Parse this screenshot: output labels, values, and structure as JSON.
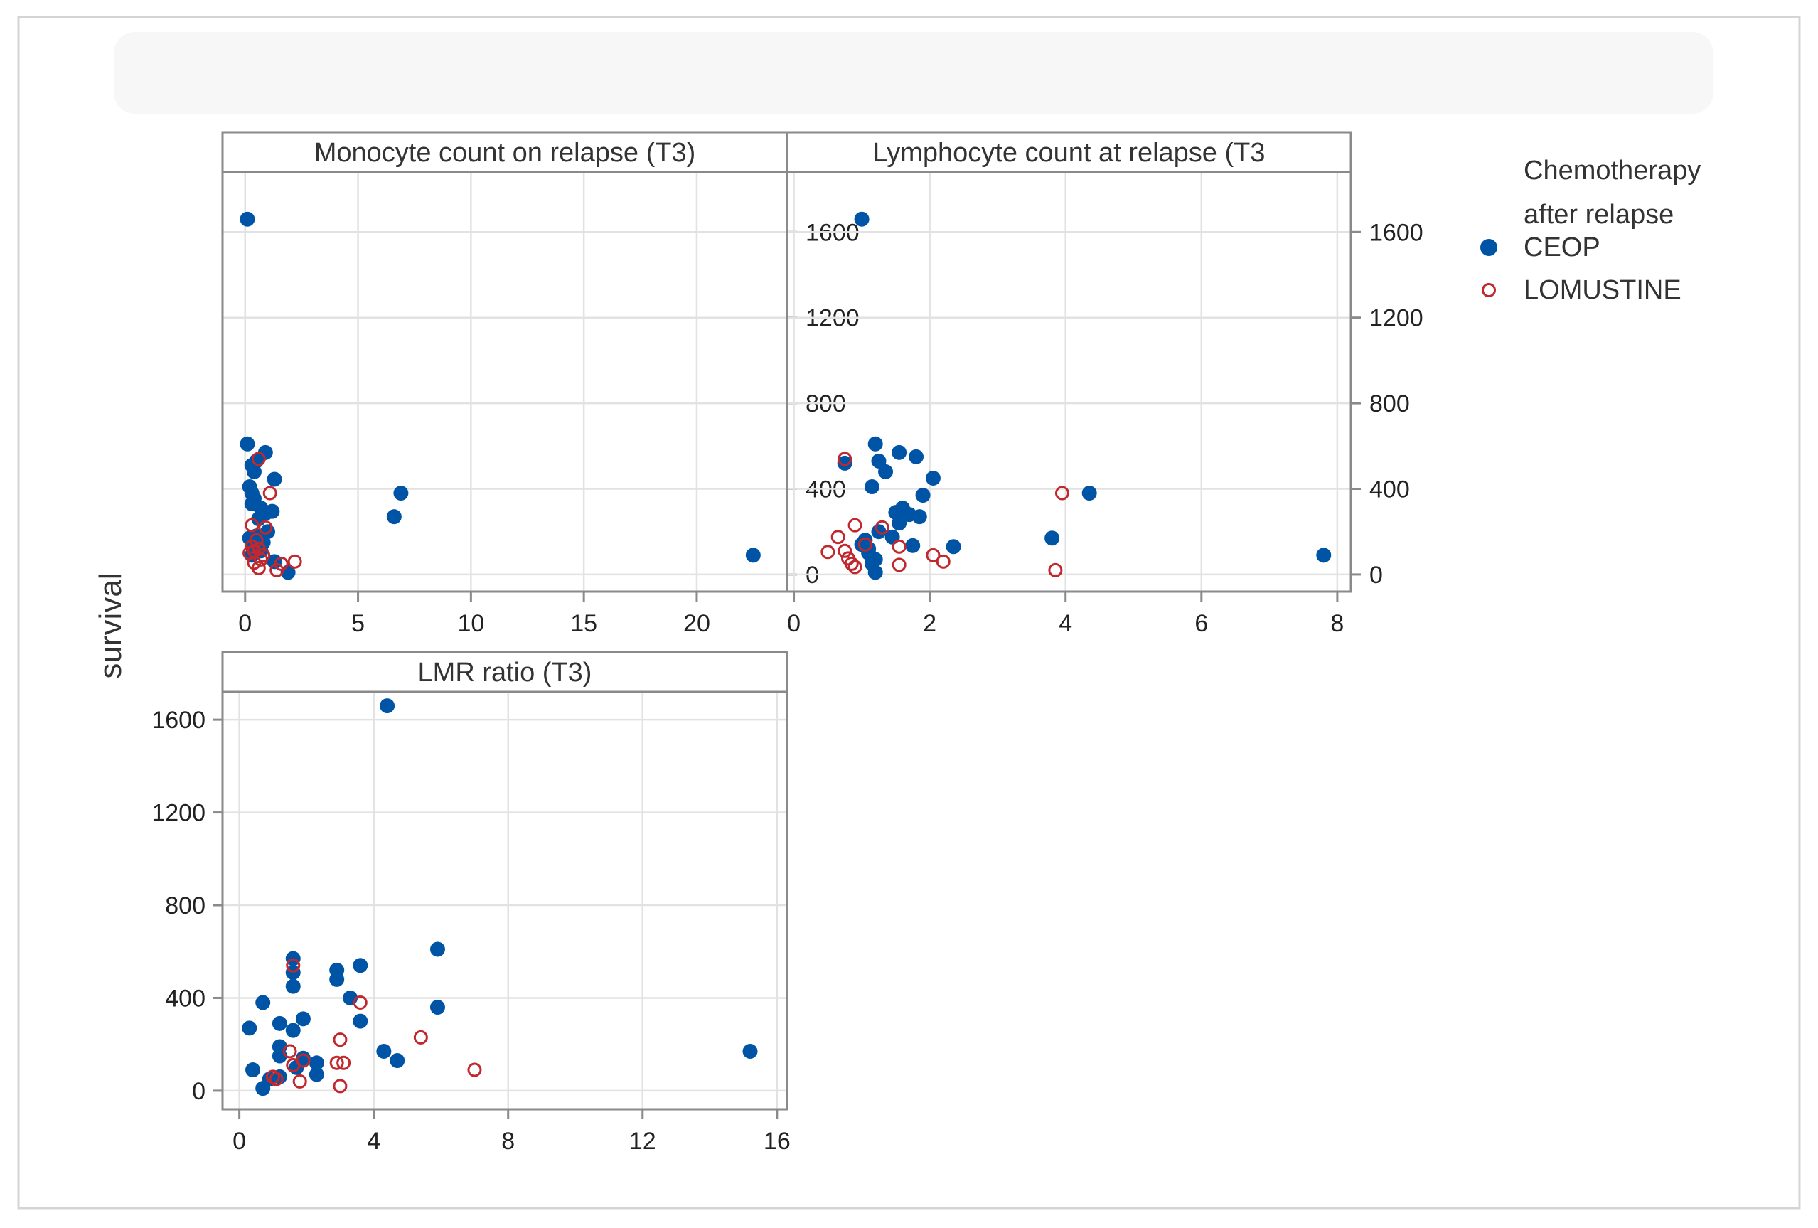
{
  "chart_data": {
    "type": "scatter",
    "ylabel": "survival",
    "legend": {
      "title_lines": [
        "Chemotherapy",
        "after relapse"
      ],
      "placement": "right",
      "entries": [
        {
          "name": "CEOP",
          "marker": "filled-circle",
          "color": "#0054A6"
        },
        {
          "name": "LOMUSTINE",
          "marker": "open-circle",
          "color": "#C0282D"
        }
      ]
    },
    "panels": [
      {
        "id": "monocyte",
        "strip_label": "Monocyte count on relapse (T3)",
        "xlim": [
          -1,
          24
        ],
        "xticks": [
          0,
          5,
          10,
          15,
          20
        ],
        "ylim": [
          -80,
          1880
        ],
        "yticks": [
          0,
          400,
          800,
          1200,
          1600
        ],
        "y_axis_side": "right",
        "series": [
          {
            "name": "CEOP",
            "points": [
              [
                0.1,
                1660
              ],
              [
                0.1,
                610
              ],
              [
                0.9,
                570
              ],
              [
                0.5,
                530
              ],
              [
                0.3,
                510
              ],
              [
                0.4,
                480
              ],
              [
                1.3,
                445
              ],
              [
                0.2,
                410
              ],
              [
                0.3,
                380
              ],
              [
                0.4,
                355
              ],
              [
                0.3,
                330
              ],
              [
                0.7,
                310
              ],
              [
                1.2,
                295
              ],
              [
                0.9,
                285
              ],
              [
                0.6,
                260
              ],
              [
                1.0,
                200
              ],
              [
                0.5,
                180
              ],
              [
                0.2,
                170
              ],
              [
                0.8,
                150
              ],
              [
                0.4,
                130
              ],
              [
                0.7,
                110
              ],
              [
                0.3,
                90
              ],
              [
                1.3,
                60
              ],
              [
                1.9,
                10
              ],
              [
                6.9,
                380
              ],
              [
                6.6,
                270
              ],
              [
                22.5,
                90
              ]
            ]
          },
          {
            "name": "LOMUSTINE",
            "points": [
              [
                0.6,
                540
              ],
              [
                1.1,
                380
              ],
              [
                0.3,
                230
              ],
              [
                0.9,
                220
              ],
              [
                0.5,
                160
              ],
              [
                0.3,
                130
              ],
              [
                0.6,
                120
              ],
              [
                0.4,
                110
              ],
              [
                0.2,
                100
              ],
              [
                0.8,
                90
              ],
              [
                0.7,
                70
              ],
              [
                0.4,
                55
              ],
              [
                1.6,
                50
              ],
              [
                2.2,
                60
              ],
              [
                0.6,
                30
              ],
              [
                1.4,
                20
              ]
            ]
          }
        ]
      },
      {
        "id": "lymphocyte",
        "strip_label": "Lymphocyte count at relapse (T3",
        "xlim": [
          -0.1,
          8.2
        ],
        "xticks": [
          0,
          2,
          4,
          6,
          8
        ],
        "ylim": [
          -80,
          1880
        ],
        "yticks": [
          0,
          400,
          800,
          1200,
          1600
        ],
        "y_axis_side": "right",
        "series": [
          {
            "name": "CEOP",
            "points": [
              [
                1.0,
                1660
              ],
              [
                1.2,
                610
              ],
              [
                1.55,
                570
              ],
              [
                1.8,
                550
              ],
              [
                1.25,
                530
              ],
              [
                0.75,
                520
              ],
              [
                1.35,
                480
              ],
              [
                2.05,
                450
              ],
              [
                1.15,
                410
              ],
              [
                1.9,
                370
              ],
              [
                4.35,
                380
              ],
              [
                1.6,
                310
              ],
              [
                1.5,
                290
              ],
              [
                1.7,
                280
              ],
              [
                1.85,
                270
              ],
              [
                1.55,
                240
              ],
              [
                1.25,
                200
              ],
              [
                3.8,
                170
              ],
              [
                1.45,
                175
              ],
              [
                1.05,
                160
              ],
              [
                1.0,
                140
              ],
              [
                1.1,
                120
              ],
              [
                2.35,
                130
              ],
              [
                1.75,
                135
              ],
              [
                1.1,
                100
              ],
              [
                1.2,
                70
              ],
              [
                7.8,
                90
              ],
              [
                1.15,
                50
              ],
              [
                1.2,
                10
              ]
            ]
          },
          {
            "name": "LOMUSTINE",
            "points": [
              [
                0.75,
                540
              ],
              [
                3.95,
                380
              ],
              [
                0.9,
                230
              ],
              [
                1.3,
                220
              ],
              [
                0.65,
                175
              ],
              [
                1.05,
                140
              ],
              [
                1.55,
                130
              ],
              [
                0.75,
                110
              ],
              [
                0.5,
                105
              ],
              [
                2.05,
                90
              ],
              [
                0.8,
                75
              ],
              [
                2.2,
                60
              ],
              [
                0.85,
                50
              ],
              [
                1.55,
                45
              ],
              [
                0.9,
                35
              ],
              [
                3.85,
                20
              ]
            ]
          }
        ]
      },
      {
        "id": "lmr",
        "strip_label": "LMR ratio (T3)",
        "xlim": [
          -0.5,
          16.3
        ],
        "xticks": [
          0,
          4,
          8,
          12,
          16
        ],
        "ylim": [
          -80,
          1720
        ],
        "yticks": [
          0,
          400,
          800,
          1200,
          1600
        ],
        "y_axis_side": "left",
        "series": [
          {
            "name": "CEOP",
            "points": [
              [
                4.4,
                1660
              ],
              [
                5.9,
                610
              ],
              [
                1.6,
                570
              ],
              [
                3.6,
                540
              ],
              [
                2.9,
                520
              ],
              [
                1.6,
                510
              ],
              [
                2.9,
                480
              ],
              [
                1.6,
                450
              ],
              [
                3.3,
                400
              ],
              [
                0.7,
                380
              ],
              [
                5.9,
                360
              ],
              [
                1.9,
                310
              ],
              [
                3.6,
                300
              ],
              [
                1.2,
                290
              ],
              [
                1.6,
                260
              ],
              [
                0.3,
                270
              ],
              [
                1.2,
                190
              ],
              [
                4.3,
                170
              ],
              [
                15.2,
                170
              ],
              [
                1.2,
                150
              ],
              [
                1.9,
                140
              ],
              [
                4.7,
                130
              ],
              [
                2.3,
                120
              ],
              [
                1.7,
                100
              ],
              [
                0.4,
                90
              ],
              [
                2.3,
                70
              ],
              [
                1.2,
                60
              ],
              [
                0.9,
                50
              ],
              [
                0.7,
                10
              ]
            ]
          },
          {
            "name": "LOMUSTINE",
            "points": [
              [
                1.6,
                540
              ],
              [
                3.6,
                380
              ],
              [
                5.4,
                230
              ],
              [
                3.0,
                220
              ],
              [
                1.5,
                170
              ],
              [
                1.9,
                130
              ],
              [
                2.9,
                120
              ],
              [
                3.1,
                120
              ],
              [
                1.6,
                110
              ],
              [
                7.0,
                90
              ],
              [
                1.0,
                60
              ],
              [
                1.1,
                50
              ],
              [
                1.8,
                40
              ],
              [
                3.0,
                20
              ]
            ]
          }
        ]
      }
    ]
  }
}
